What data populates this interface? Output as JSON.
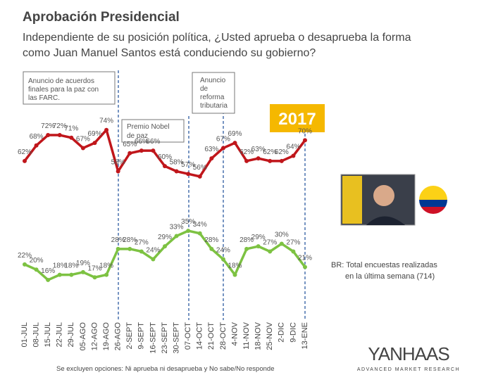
{
  "title": "Aprobación Presidencial",
  "subtitle": [
    "Independiente de su posición política, ¿Usted aprueba o desaprueba la forma",
    "como Juan Manuel Santos está conduciendo su gobierno?"
  ],
  "chart_data": {
    "type": "line",
    "categories": [
      "01-JUL",
      "08-JUL",
      "15-JUL",
      "22-JUL",
      "29-JUL",
      "05-AGO",
      "12-AGO",
      "19-AGO",
      "26-AGO",
      "2-SEPT",
      "9-SEPT",
      "16-SEPT",
      "23-SEPT",
      "30-SEPT",
      "07-OCT",
      "14-OCT",
      "21-OCT",
      "28-OCT",
      "4-NOV",
      "11-NOV",
      "18-NOV",
      "25-NOV",
      "2-DIC",
      "9-DIC",
      "13-ENE"
    ],
    "ylim": [
      10,
      78
    ],
    "series": [
      {
        "color": "#c0161b",
        "values": [
          62,
          68,
          72,
          72,
          71,
          67,
          69,
          74,
          58,
          65,
          66,
          66,
          60,
          58,
          57,
          56,
          63,
          67,
          69,
          62,
          63,
          62,
          62,
          64,
          70
        ],
        "value_labels": [
          "62%",
          "68%",
          "72%",
          "72%",
          "71%",
          "67%",
          "69%",
          "74%",
          "58%",
          "65%",
          "66%",
          "66%",
          "60%",
          "58%",
          "57%",
          "56%",
          "63%",
          "67%",
          "69%",
          "62%",
          "63%",
          "62%",
          "62%",
          "64%",
          "70%"
        ]
      },
      {
        "color": "#7dc242",
        "values": [
          22,
          20,
          16,
          18,
          18,
          19,
          17,
          18,
          28,
          28,
          27,
          24,
          29,
          33,
          35,
          34,
          28,
          24,
          18,
          28,
          29,
          27,
          30,
          27,
          21
        ],
        "value_labels": [
          "22%",
          "20%",
          "16%",
          "18%",
          "18%",
          "19%",
          "17%",
          "18%",
          "28%",
          "28%",
          "27%",
          "24%",
          "29%",
          "33%",
          "35%",
          "34%",
          "28%",
          "24%",
          "18%",
          "28%",
          "29%",
          "27%",
          "30%",
          "27%",
          "21%"
        ]
      }
    ],
    "annotations": [
      [
        "Anuncio de acuerdos",
        "finales para la paz con",
        "las FARC."
      ],
      [
        "Premio  Nobel",
        "de paz"
      ],
      [
        "Anuncio",
        "de",
        "reforma",
        "tributaria"
      ]
    ],
    "year": "2017"
  },
  "note": [
    "BR: Total encuestas realizadas",
    "en la última semana (714)"
  ],
  "footnote": "Se excluyen opciones: Ni aprueba ni desaprueba y No sabe/No responde",
  "logo": {
    "name": "YANHAAS",
    "tagline": "ADVANCED MARKET RESEARCH"
  }
}
